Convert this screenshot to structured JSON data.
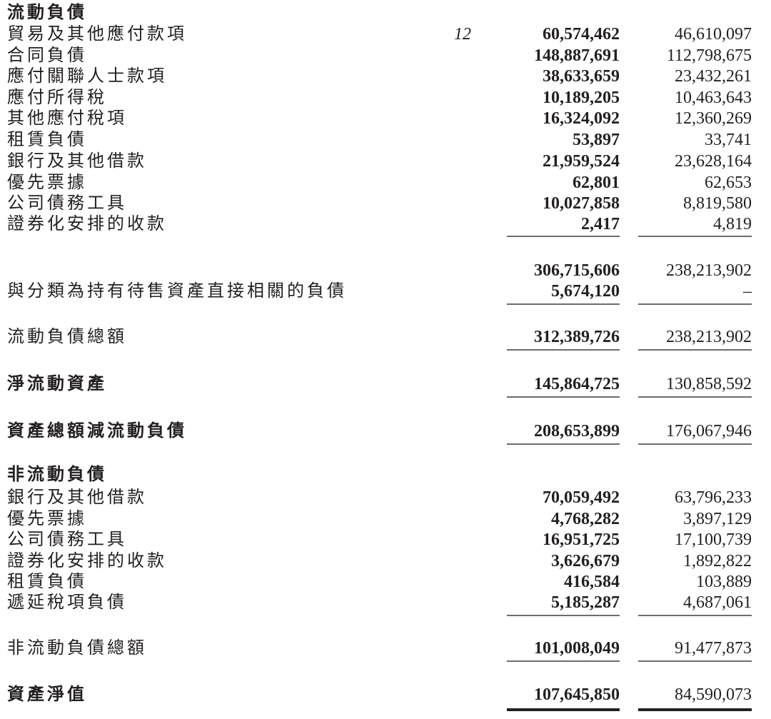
{
  "current_liabilities": {
    "heading": "流動負債",
    "items": [
      {
        "label": "貿易及其他應付款項",
        "note": "12",
        "current": "60,574,462",
        "prior": "46,610,097"
      },
      {
        "label": "合同負債",
        "current": "148,887,691",
        "prior": "112,798,675"
      },
      {
        "label": "應付關聯人士款項",
        "current": "38,633,659",
        "prior": "23,432,261"
      },
      {
        "label": "應付所得稅",
        "current": "10,189,205",
        "prior": "10,463,643"
      },
      {
        "label": "其他應付稅項",
        "current": "16,324,092",
        "prior": "12,360,269"
      },
      {
        "label": "租賃負債",
        "current": "53,897",
        "prior": "33,741"
      },
      {
        "label": "銀行及其他借款",
        "current": "21,959,524",
        "prior": "23,628,164"
      },
      {
        "label": "優先票據",
        "current": "62,801",
        "prior": "62,653"
      },
      {
        "label": "公司債務工具",
        "current": "10,027,858",
        "prior": "8,819,580"
      },
      {
        "label": "證券化安排的收款",
        "current": "2,417",
        "prior": "4,819"
      }
    ],
    "subtotal": {
      "current": "306,715,606",
      "prior": "238,213,902"
    },
    "held_for_sale": {
      "label": "與分類為持有待售資產直接相關的負債",
      "current": "5,674,120",
      "prior": "–"
    },
    "total": {
      "label": "流動負債總額",
      "current": "312,389,726",
      "prior": "238,213,902"
    }
  },
  "net_current_assets": {
    "label": "淨流動資產",
    "current": "145,864,725",
    "prior": "130,858,592"
  },
  "total_assets_less_cl": {
    "label": "資產總額減流動負債",
    "current": "208,653,899",
    "prior": "176,067,946"
  },
  "non_current_liabilities": {
    "heading": "非流動負債",
    "items": [
      {
        "label": "銀行及其他借款",
        "current": "70,059,492",
        "prior": "63,796,233"
      },
      {
        "label": "優先票據",
        "current": "4,768,282",
        "prior": "3,897,129"
      },
      {
        "label": "公司債務工具",
        "current": "16,951,725",
        "prior": "17,100,739"
      },
      {
        "label": "證券化安排的收款",
        "current": "3,626,679",
        "prior": "1,892,822"
      },
      {
        "label": "租賃負債",
        "current": "416,584",
        "prior": "103,889"
      },
      {
        "label": "遞延稅項負債",
        "current": "5,185,287",
        "prior": "4,687,061"
      }
    ],
    "total": {
      "label": "非流動負債總額",
      "current": "101,008,049",
      "prior": "91,477,873"
    }
  },
  "net_assets": {
    "label": "資產淨值",
    "current": "107,645,850",
    "prior": "84,590,073"
  }
}
